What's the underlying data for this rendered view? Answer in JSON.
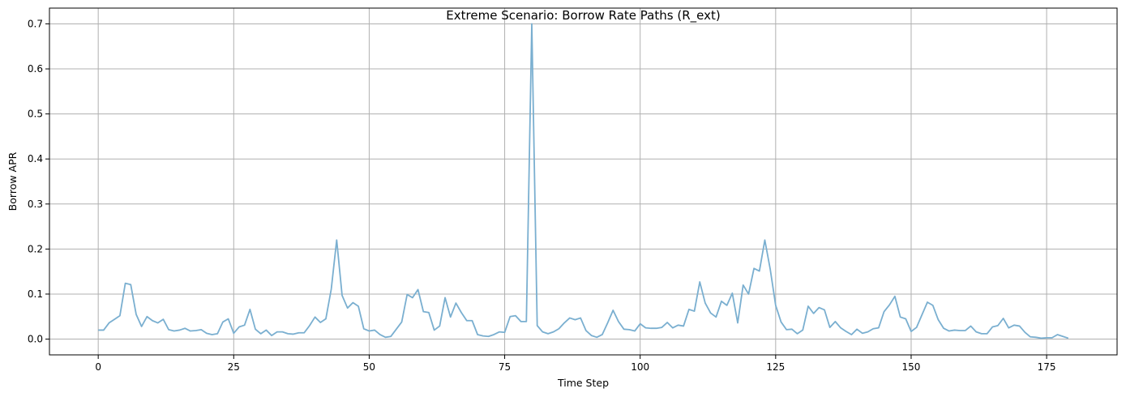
{
  "chart_data": {
    "type": "line",
    "title": "Extreme Scenario: Borrow Rate Paths (R_ext)",
    "xlabel": "Time Step",
    "ylabel": "Borrow APR",
    "xlim": [
      -9,
      188
    ],
    "ylim": [
      -0.035,
      0.735
    ],
    "x_ticks": [
      0,
      25,
      50,
      75,
      100,
      125,
      150,
      175
    ],
    "y_ticks": [
      0.0,
      0.1,
      0.2,
      0.3,
      0.4,
      0.5,
      0.6,
      0.7
    ],
    "x_tick_labels": [
      "0",
      "25",
      "50",
      "75",
      "100",
      "125",
      "150",
      "175"
    ],
    "y_tick_labels": [
      "0.0",
      "0.1",
      "0.2",
      "0.3",
      "0.4",
      "0.5",
      "0.6",
      "0.7"
    ],
    "grid": true,
    "line_color": "#7aafd0",
    "series": [
      {
        "values": [
          0.02,
          0.02,
          0.036,
          0.044,
          0.052,
          0.124,
          0.121,
          0.055,
          0.028,
          0.05,
          0.041,
          0.036,
          0.044,
          0.021,
          0.018,
          0.02,
          0.024,
          0.018,
          0.019,
          0.021,
          0.013,
          0.01,
          0.012,
          0.038,
          0.045,
          0.013,
          0.027,
          0.031,
          0.066,
          0.022,
          0.012,
          0.02,
          0.008,
          0.016,
          0.016,
          0.012,
          0.011,
          0.014,
          0.014,
          0.03,
          0.049,
          0.037,
          0.045,
          0.111,
          0.22,
          0.097,
          0.069,
          0.081,
          0.073,
          0.023,
          0.018,
          0.02,
          0.01,
          0.004,
          0.006,
          0.022,
          0.038,
          0.099,
          0.092,
          0.11,
          0.061,
          0.059,
          0.02,
          0.029,
          0.092,
          0.049,
          0.08,
          0.059,
          0.041,
          0.041,
          0.01,
          0.007,
          0.006,
          0.01,
          0.016,
          0.015,
          0.05,
          0.052,
          0.039,
          0.039,
          0.7,
          0.03,
          0.016,
          0.012,
          0.016,
          0.023,
          0.036,
          0.047,
          0.043,
          0.047,
          0.019,
          0.008,
          0.004,
          0.01,
          0.036,
          0.064,
          0.039,
          0.022,
          0.021,
          0.018,
          0.034,
          0.025,
          0.024,
          0.024,
          0.026,
          0.037,
          0.025,
          0.031,
          0.029,
          0.066,
          0.062,
          0.127,
          0.08,
          0.058,
          0.049,
          0.084,
          0.075,
          0.102,
          0.036,
          0.12,
          0.1,
          0.157,
          0.151,
          0.22,
          0.155,
          0.075,
          0.038,
          0.021,
          0.022,
          0.012,
          0.02,
          0.073,
          0.057,
          0.07,
          0.065,
          0.026,
          0.039,
          0.025,
          0.017,
          0.01,
          0.022,
          0.013,
          0.016,
          0.023,
          0.025,
          0.061,
          0.076,
          0.095,
          0.049,
          0.045,
          0.017,
          0.026,
          0.054,
          0.082,
          0.075,
          0.043,
          0.024,
          0.018,
          0.02,
          0.019,
          0.019,
          0.029,
          0.016,
          0.012,
          0.012,
          0.027,
          0.03,
          0.046,
          0.025,
          0.031,
          0.029,
          0.015,
          0.005,
          0.004,
          0.002,
          0.003,
          0.003,
          0.01,
          0.006,
          0.002
        ]
      }
    ]
  }
}
